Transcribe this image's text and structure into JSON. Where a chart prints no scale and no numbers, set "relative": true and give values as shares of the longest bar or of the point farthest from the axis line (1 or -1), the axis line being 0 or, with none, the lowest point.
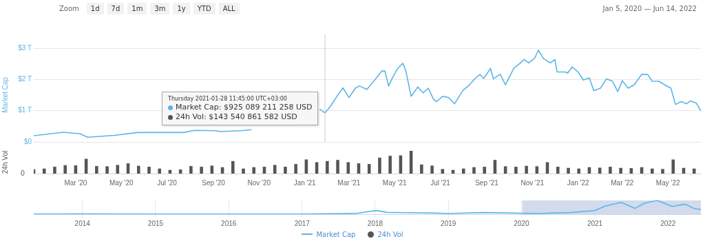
{
  "chart_data": [
    {
      "type": "other",
      "annotations": [
        "Zoom",
        "1d",
        "7d",
        "1m",
        "3m",
        "1y",
        "YTD",
        "ALL"
      ]
    },
    {
      "type": "other",
      "annotations": [
        "Jan 5, 2020  —  Jun 14, 2022"
      ]
    },
    {
      "type": "line",
      "ylabel": "Market Cap",
      "xlim": [
        "2020-01-05",
        "2022-06-14"
      ],
      "ylim": [
        0,
        3
      ],
      "yticks": [
        {
          "value": 0,
          "label": "$0"
        },
        {
          "value": 1,
          "label": "$1 T"
        },
        {
          "value": 2,
          "label": "$2 T"
        },
        {
          "value": 3,
          "label": "$3 T"
        }
      ],
      "grid": "y",
      "tick_labels": "y",
      "legend": "bottom",
      "ref_lines": [
        {
          "axis": "x",
          "value": "2021-01-28",
          "color": "#cccccc"
        }
      ],
      "annotations": [
        {
          "text": "Thursday 2021-01-28 11:45:00 UTC+03:00\nMarket Cap: $925 089 211 258 USD\n24h Vol: $143 540 861 582 USD",
          "x": "2021-01-28",
          "y": 0.925
        }
      ],
      "series": [
        {
          "name": "Market Cap",
          "color": "#5bb5e8",
          "x": [
            "2020-01-05",
            "2020-02-14",
            "2020-03-07",
            "2020-03-17",
            "2020-04-22",
            "2020-05-23",
            "2020-07-23",
            "2020-08-07",
            "2020-09-04",
            "2020-09-10",
            "2020-10-08",
            "2020-10-22",
            "2020-12-01",
            "2021-01-21",
            "2021-01-28",
            "2021-02-04",
            "2021-02-13",
            "2021-02-21",
            "2021-03-01",
            "2021-03-10",
            "2021-03-15",
            "2021-03-25",
            "2021-04-03",
            "2021-04-14",
            "2021-04-18",
            "2021-04-23",
            "2021-04-28",
            "2021-05-05",
            "2021-05-12",
            "2021-05-16",
            "2021-05-23",
            "2021-06-01",
            "2021-06-08",
            "2021-06-15",
            "2021-06-22",
            "2021-06-26",
            "2021-07-04",
            "2021-07-12",
            "2021-07-20",
            "2021-07-31",
            "2021-08-09",
            "2021-08-16",
            "2021-08-23",
            "2021-08-28",
            "2021-09-06",
            "2021-09-10",
            "2021-09-19",
            "2021-09-26",
            "2021-10-07",
            "2021-10-16",
            "2021-10-21",
            "2021-10-27",
            "2021-11-04",
            "2021-11-09",
            "2021-11-16",
            "2021-11-25",
            "2021-12-01",
            "2021-12-04",
            "2021-12-15",
            "2021-12-18",
            "2021-12-24",
            "2022-01-01",
            "2022-01-08",
            "2022-01-16",
            "2022-01-22",
            "2022-01-31",
            "2022-02-08",
            "2022-02-16",
            "2022-02-23",
            "2022-03-01",
            "2022-03-09",
            "2022-03-17",
            "2022-03-27",
            "2022-04-04",
            "2022-04-10",
            "2022-04-19",
            "2022-04-28",
            "2022-05-05",
            "2022-05-11",
            "2022-05-19",
            "2022-05-26",
            "2022-05-31",
            "2022-06-08",
            "2022-06-14"
          ],
          "values": [
            0.2,
            0.31,
            0.26,
            0.15,
            0.21,
            0.3,
            0.3,
            0.37,
            0.36,
            0.33,
            0.36,
            0.39,
            null,
            1.05,
            0.925,
            1.13,
            1.46,
            1.73,
            1.42,
            1.73,
            1.79,
            1.68,
            1.94,
            2.27,
            2.27,
            1.79,
            2.05,
            2.35,
            2.52,
            2.27,
            1.46,
            1.76,
            1.57,
            1.72,
            1.36,
            1.29,
            1.46,
            1.42,
            1.22,
            1.64,
            1.83,
            2.02,
            2.16,
            2.03,
            2.35,
            2.02,
            2.17,
            1.83,
            2.35,
            2.53,
            2.64,
            2.53,
            2.68,
            2.94,
            2.66,
            2.53,
            2.64,
            2.24,
            2.24,
            2.2,
            2.4,
            2.24,
            1.98,
            2.05,
            1.64,
            1.72,
            2.02,
            1.94,
            1.61,
            1.96,
            1.72,
            1.83,
            2.16,
            2.16,
            1.94,
            1.94,
            1.81,
            1.72,
            1.2,
            1.29,
            1.22,
            1.31,
            1.24,
            0.99
          ]
        }
      ]
    },
    {
      "type": "bar",
      "ylabel": "24h Vol",
      "relative": true,
      "xlim": [
        "2020-01-05",
        "2022-06-14"
      ],
      "tick_labels": "x",
      "legend": "bottom",
      "annotations": [
        "0"
      ],
      "xticks": [
        {
          "value": "2020-03-01",
          "label": "Mar '20"
        },
        {
          "value": "2020-05-01",
          "label": "May '20"
        },
        {
          "value": "2020-07-01",
          "label": "Jul '20"
        },
        {
          "value": "2020-09-01",
          "label": "Sep '20"
        },
        {
          "value": "2020-11-01",
          "label": "Nov '20"
        },
        {
          "value": "2021-01-01",
          "label": "Jan '21"
        },
        {
          "value": "2021-03-01",
          "label": "Mar '21"
        },
        {
          "value": "2021-05-01",
          "label": "May '21"
        },
        {
          "value": "2021-07-01",
          "label": "Jul '21"
        },
        {
          "value": "2021-09-01",
          "label": "Sep '21"
        },
        {
          "value": "2021-11-01",
          "label": "Nov '21"
        },
        {
          "value": "2022-01-01",
          "label": "Jan '22"
        },
        {
          "value": "2022-03-01",
          "label": "Mar '22"
        },
        {
          "value": "2022-05-01",
          "label": "May '22"
        }
      ],
      "series": [
        {
          "name": "24h Vol",
          "color": "#555555",
          "x": [
            "2020-01-05",
            "2020-01-19",
            "2020-02-02",
            "2020-02-16",
            "2020-03-01",
            "2020-03-15",
            "2020-03-29",
            "2020-04-12",
            "2020-04-26",
            "2020-05-10",
            "2020-05-24",
            "2020-06-07",
            "2020-06-21",
            "2020-07-05",
            "2020-07-19",
            "2020-08-02",
            "2020-08-16",
            "2020-08-30",
            "2020-09-13",
            "2020-09-27",
            "2020-10-11",
            "2020-10-25",
            "2020-11-08",
            "2020-11-22",
            "2020-12-06",
            "2020-12-20",
            "2021-01-03",
            "2021-01-17",
            "2021-01-31",
            "2021-02-14",
            "2021-02-28",
            "2021-03-14",
            "2021-03-28",
            "2021-04-11",
            "2021-04-25",
            "2021-05-09",
            "2021-05-23",
            "2021-06-06",
            "2021-06-20",
            "2021-07-04",
            "2021-07-18",
            "2021-08-01",
            "2021-08-15",
            "2021-08-29",
            "2021-09-12",
            "2021-09-26",
            "2021-10-10",
            "2021-10-24",
            "2021-11-07",
            "2021-11-21",
            "2021-12-05",
            "2021-12-19",
            "2022-01-02",
            "2022-01-16",
            "2022-01-30",
            "2022-02-13",
            "2022-02-27",
            "2022-03-13",
            "2022-03-27",
            "2022-04-10",
            "2022-04-24",
            "2022-05-08",
            "2022-05-22",
            "2022-06-05"
          ],
          "values": [
            0.19,
            0.22,
            0.3,
            0.37,
            0.36,
            0.65,
            0.33,
            0.32,
            0.38,
            0.45,
            0.34,
            0.3,
            0.22,
            0.16,
            0.18,
            0.33,
            0.3,
            0.35,
            0.28,
            0.55,
            0.22,
            0.28,
            0.3,
            0.38,
            0.3,
            0.42,
            0.62,
            0.5,
            0.55,
            0.6,
            0.5,
            0.45,
            0.42,
            0.7,
            0.78,
            0.8,
            1.0,
            0.4,
            0.35,
            0.2,
            0.16,
            0.22,
            0.28,
            0.3,
            0.6,
            0.32,
            0.3,
            0.34,
            0.32,
            0.5,
            0.3,
            0.25,
            0.22,
            0.28,
            0.26,
            0.3,
            0.25,
            0.24,
            0.28,
            0.22,
            0.2,
            0.62,
            0.25,
            0.22
          ]
        }
      ]
    },
    {
      "type": "line",
      "relative": true,
      "xlim": [
        "2013-05-03",
        "2022-06-14"
      ],
      "tick_labels": "x",
      "grid": "x",
      "xticks": [
        {
          "value": "2014-01-01",
          "label": "2014"
        },
        {
          "value": "2015-01-01",
          "label": "2015"
        },
        {
          "value": "2016-01-01",
          "label": "2016"
        },
        {
          "value": "2017-01-01",
          "label": "2017"
        },
        {
          "value": "2018-01-01",
          "label": "2018"
        },
        {
          "value": "2019-01-01",
          "label": "2019"
        },
        {
          "value": "2020-01-01",
          "label": "2020"
        },
        {
          "value": "2021-01-01",
          "label": "2021"
        },
        {
          "value": "2022-01-01",
          "label": "2022"
        }
      ],
      "bands": [
        {
          "axis": "x",
          "from": "2020-01-05",
          "to": "2022-06-14",
          "color": "#d3daeb"
        }
      ],
      "series": [
        {
          "color": "#5bb5e8",
          "x": [
            "2013-05-03",
            "2014-01-01",
            "2015-01-01",
            "2016-01-01",
            "2017-01-01",
            "2017-06-01",
            "2017-10-01",
            "2018-01-07",
            "2018-03-01",
            "2018-06-01",
            "2018-11-01",
            "2019-01-01",
            "2019-06-25",
            "2019-12-01",
            "2020-03-15",
            "2020-09-01",
            "2021-01-01",
            "2021-02-21",
            "2021-05-12",
            "2021-07-20",
            "2021-09-06",
            "2021-11-09",
            "2022-01-22",
            "2022-03-27",
            "2022-05-11",
            "2022-06-14"
          ],
          "values": [
            0.01,
            0.02,
            0.01,
            0.01,
            0.01,
            0.04,
            0.06,
            0.27,
            0.13,
            0.11,
            0.08,
            0.05,
            0.12,
            0.08,
            0.05,
            0.12,
            0.26,
            0.59,
            0.86,
            0.42,
            0.8,
            1,
            0.56,
            0.73,
            0.41,
            0.34
          ]
        }
      ]
    }
  ]
}
